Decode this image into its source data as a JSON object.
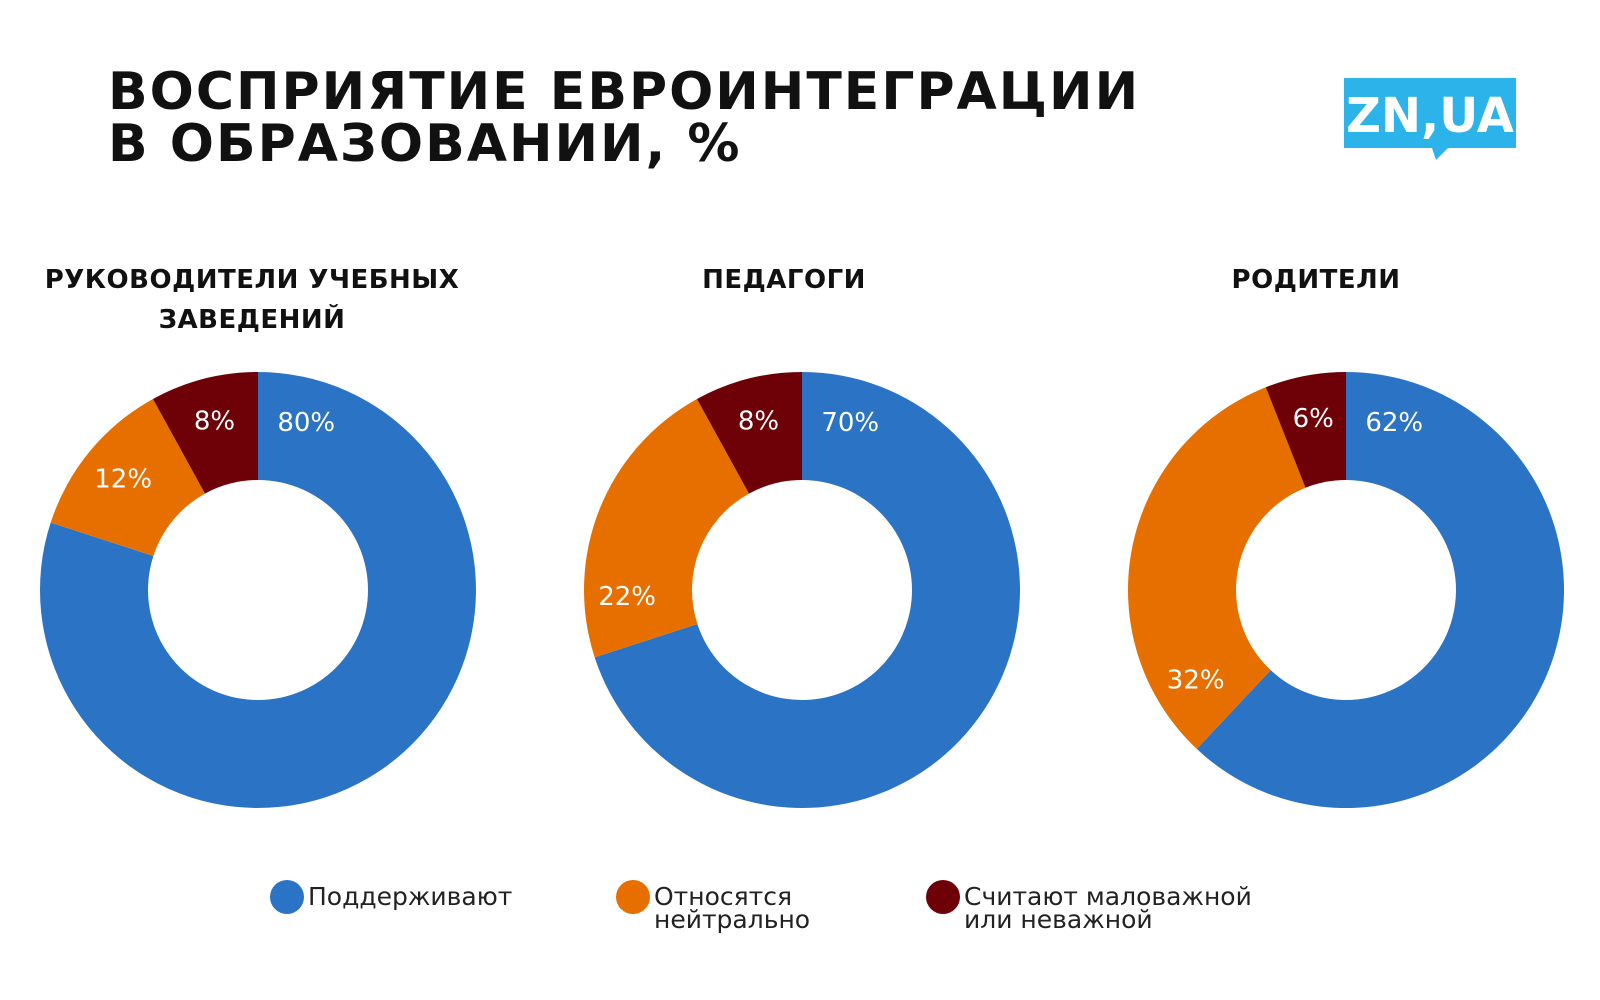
{
  "header": {
    "title_line1": "ВОСПРИЯТИЕ ЕВРОИНТЕГРАЦИИ",
    "title_line2": "В ОБРАЗОВАНИИ, %",
    "logo_text": "ZN,UA"
  },
  "colors": {
    "support": "#2a73c5",
    "neutral": "#e66f00",
    "unimportant": "#6e0008",
    "logo": "#2bb3ea"
  },
  "chart_data": [
    {
      "type": "pie",
      "title": "РУКОВОДИТЕЛИ УЧЕБНЫХ ЗАВЕДЕНИЙ",
      "categories": [
        "Поддерживают",
        "Относятся нейтрально",
        "Считают маловажной или неважной"
      ],
      "values": [
        80,
        12,
        8
      ],
      "labels": [
        "80%",
        "12%",
        "8%"
      ]
    },
    {
      "type": "pie",
      "title": "ПЕДАГОГИ",
      "categories": [
        "Поддерживают",
        "Относятся нейтрально",
        "Считают маловажной или неважной"
      ],
      "values": [
        70,
        22,
        8
      ],
      "labels": [
        "70%",
        "22%",
        "8%"
      ]
    },
    {
      "type": "pie",
      "title": "РОДИТЕЛИ",
      "categories": [
        "Поддерживают",
        "Относятся нейтрально",
        "Считают маловажной или неважной"
      ],
      "values": [
        62,
        32,
        6
      ],
      "labels": [
        "62%",
        "32%",
        "6%"
      ]
    }
  ],
  "legend": {
    "items": [
      {
        "label": "Поддерживают",
        "color": "#2a73c5"
      },
      {
        "label": "Относятся\nнейтрально",
        "color": "#e66f00"
      },
      {
        "label": "Считают маловажной\nили неважной",
        "color": "#6e0008"
      }
    ]
  }
}
